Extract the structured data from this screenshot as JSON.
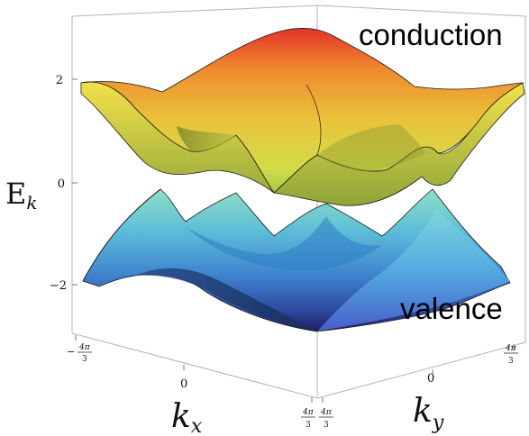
{
  "figure": {
    "band_labels": {
      "conduction": "conduction",
      "valence": "valence"
    },
    "axes": {
      "z_label": "E",
      "z_label_sub": "k",
      "z_ticks": [
        "2",
        "0",
        "−2"
      ],
      "kx_label": "k",
      "kx_label_sub": "x",
      "ky_label": "k",
      "ky_label_sub": "y",
      "kx_ticks": {
        "min_sign": "−",
        "min_num": "4π",
        "min_den": "3",
        "zero": "0",
        "max_num": "4π",
        "max_den": "3"
      },
      "ky_ticks": {
        "min_num": "4π",
        "min_den": "3",
        "zero": "0",
        "max_num": "4π",
        "max_den": "3"
      }
    },
    "colors": {
      "conduction_top": "#e8392a",
      "conduction_mid": "#f0a832",
      "conduction_low": "#d9dc4a",
      "valence_high": "#7fd6c8",
      "valence_mid": "#4aa3d6",
      "valence_low": "#2c3f8f",
      "valence_bottom": "#1f1a5e"
    }
  }
}
